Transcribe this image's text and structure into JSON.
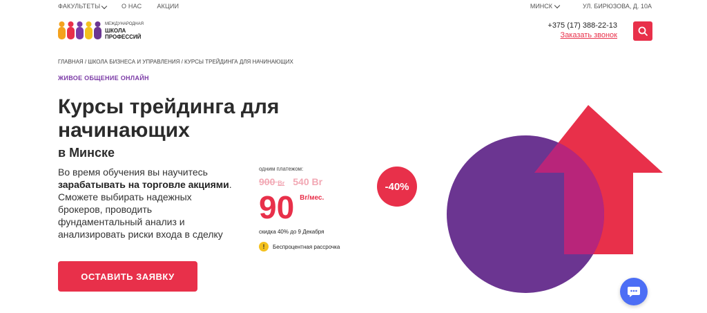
{
  "topbar": {
    "faculties": "ФАКУЛЬТЕТЫ",
    "about": "О НАС",
    "promotions": "АКЦИИ",
    "city": "МИНСК",
    "address": "УЛ. БИРЮЗОВА, Д. 10А"
  },
  "header": {
    "logo_small": "МЕЖДУНАРОДНАЯ",
    "logo_line1": "ШКОЛА",
    "logo_line2": "ПРОФЕССИЙ",
    "phone": "+375 (17) 388-22-13",
    "callback": "Заказать звонок"
  },
  "breadcrumb": "ГЛАВНАЯ / ШКОЛА БИЗНЕСА И УПРАВЛЕНИЯ / КУРСЫ ТРЕЙДИНГА ДЛЯ НАЧИНАЮЩИХ",
  "tagline": "ЖИВОЕ ОБЩЕНИЕ ОНЛАЙН",
  "title": "Курсы трейдинга для начинающих",
  "city_sub": "в Минске",
  "description": {
    "line1": "Во время обучения вы научитесь",
    "bold": "зарабатывать на торговле акциями",
    "rest": ". Сможете выбирать надежных брокеров, проводить фундаментальный анализ и анализировать риски входа в сделку"
  },
  "price": {
    "once_label": "одним платежом:",
    "old_value": "900",
    "old_currency": "Br",
    "promo_value": "540 Br",
    "monthly_value": "90",
    "monthly_unit": "Br/мес.",
    "discount_note": "скидка 40% до 9 Декабря",
    "installment": "Беспроцентная рассрочка",
    "badge": "-40%"
  },
  "cta_label": "ОСТАВИТЬ ЗАЯВКУ",
  "colors": {
    "accent": "#e8304a",
    "purple": "#6b3591",
    "chat": "#4c6ef5"
  }
}
